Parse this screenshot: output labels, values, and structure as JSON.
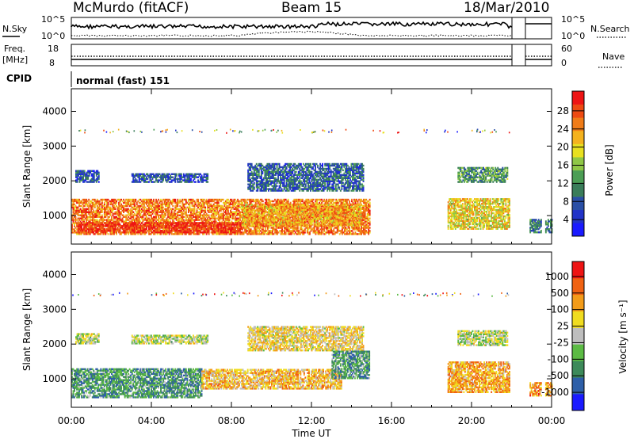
{
  "header": {
    "station": "McMurdo (fitACF)",
    "beam": "Beam 15",
    "date": "18/Mar/2010"
  },
  "strip": {
    "nsky_label": "N.Sky",
    "nsky_ticks": [
      "10^5",
      "10^0"
    ],
    "nsearch_label": "N.Search",
    "nsearch_ticks": [
      "10^5",
      "10^0"
    ],
    "freq_label_1": "Freq.",
    "freq_label_2": "[MHz]",
    "freq_ticks": [
      "18",
      "8"
    ],
    "nave_label": "Nave",
    "nave_ticks": [
      "60",
      "0"
    ],
    "cpid_label": "CPID",
    "cpid_value": "normal (fast) 151"
  },
  "xaxis": {
    "label": "Time UT",
    "ticks": [
      "00:00",
      "04:00",
      "08:00",
      "12:00",
      "16:00",
      "20:00",
      "00:00"
    ]
  },
  "chart_data": [
    {
      "type": "heatmap",
      "panel": "power",
      "ylabel": "Slant Range [km]",
      "yticks": [
        1000,
        2000,
        3000,
        4000
      ],
      "ylim": [
        180,
        4650
      ],
      "xlim_hours": [
        0,
        24
      ],
      "colorbar": {
        "label": "Power [dB]",
        "ticks": [
          "4",
          "8",
          "12",
          "16",
          "20",
          "24",
          "28"
        ],
        "colors": [
          "#1a1aff",
          "#2233c8",
          "#2a4fa6",
          "#3a7d5a",
          "#4c9e55",
          "#8fc746",
          "#e8e020",
          "#f4b21e",
          "#f07c18",
          "#ee4a12",
          "#ee1414"
        ]
      },
      "gaps_hours": [
        [
          22.05,
          22.75
        ],
        [
          23.45,
          23.62
        ]
      ],
      "bands": [
        {
          "t": [
            0.2,
            1.4
          ],
          "r": [
            1950,
            2300
          ],
          "level": 0.22
        },
        {
          "t": [
            3.0,
            6.8
          ],
          "r": [
            1950,
            2200
          ],
          "level": 0.2
        },
        {
          "t": [
            8.8,
            14.6
          ],
          "r": [
            1700,
            2500
          ],
          "level": 0.25
        },
        {
          "t": [
            0,
            14.9
          ],
          "r": [
            450,
            1450
          ],
          "level": 0.78
        },
        {
          "t": [
            0.3,
            8.5
          ],
          "r": [
            500,
            780
          ],
          "level": 0.92
        },
        {
          "t": [
            8.5,
            14.5
          ],
          "r": [
            700,
            1300
          ],
          "level": 0.7
        },
        {
          "t": [
            18.8,
            21.9
          ],
          "r": [
            600,
            1500
          ],
          "level": 0.62
        },
        {
          "t": [
            19.3,
            21.8
          ],
          "r": [
            1950,
            2400
          ],
          "level": 0.38
        },
        {
          "t": [
            22.9,
            24
          ],
          "r": [
            500,
            900
          ],
          "level": 0.3
        }
      ]
    },
    {
      "type": "heatmap",
      "panel": "velocity",
      "ylabel": "Slant Range [km]",
      "yticks": [
        1000,
        2000,
        3000,
        4000
      ],
      "ylim": [
        180,
        4650
      ],
      "xlim_hours": [
        0,
        24
      ],
      "colorbar": {
        "label": "Velocity [m s⁻¹]",
        "ticks": [
          "1000",
          "500",
          "100",
          "25",
          "-25",
          "-100",
          "-500",
          "-1000"
        ],
        "colors": [
          "#1a1aff",
          "#2e5fa8",
          "#3d8a5a",
          "#5cbb44",
          "#bebebe",
          "#f0dc20",
          "#f39c1a",
          "#f06212",
          "#ee1414"
        ]
      },
      "gaps_hours": [
        [
          22.05,
          22.75
        ],
        [
          23.45,
          23.62
        ]
      ],
      "bands": [
        {
          "t": [
            0.2,
            1.4
          ],
          "r": [
            2000,
            2300
          ],
          "level": 0.5
        },
        {
          "t": [
            3.0,
            6.8
          ],
          "r": [
            2000,
            2250
          ],
          "level": 0.5
        },
        {
          "t": [
            8.8,
            14.6
          ],
          "r": [
            1800,
            2500
          ],
          "level": 0.6
        },
        {
          "t": [
            0,
            6.5
          ],
          "r": [
            450,
            1300
          ],
          "level": 0.3
        },
        {
          "t": [
            6.5,
            13.5
          ],
          "r": [
            700,
            1250
          ],
          "level": 0.65
        },
        {
          "t": [
            13.0,
            14.9
          ],
          "r": [
            1000,
            1800
          ],
          "level": 0.32
        },
        {
          "t": [
            18.8,
            21.9
          ],
          "r": [
            600,
            1500
          ],
          "level": 0.7
        },
        {
          "t": [
            19.3,
            21.8
          ],
          "r": [
            1950,
            2400
          ],
          "level": 0.5
        },
        {
          "t": [
            22.9,
            24
          ],
          "r": [
            500,
            900
          ],
          "level": 0.72
        }
      ]
    }
  ]
}
